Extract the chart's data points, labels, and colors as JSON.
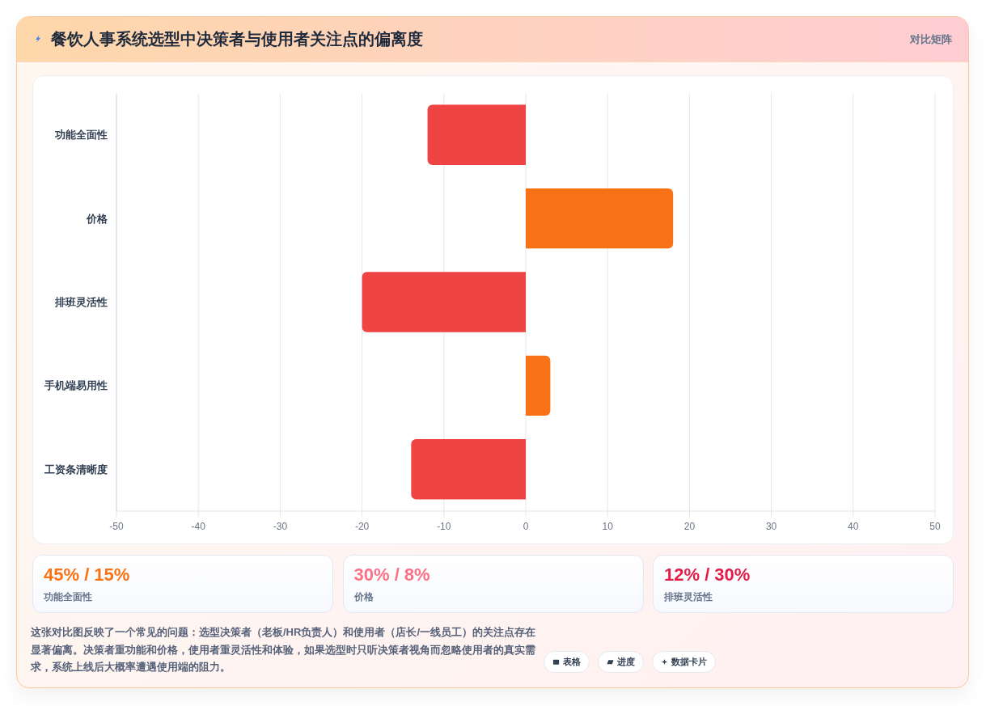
{
  "chart_data": [
    {
      "type": "bar",
      "title": "餐饮人事系统选型中决策者与使用者关注点的偏离度",
      "subtitle": "对比矩阵",
      "orientation": "horizontal",
      "categories": [
        "功能全面性",
        "价格",
        "排班灵活性",
        "手机端易用性",
        "工资条清晰度"
      ],
      "values": [
        -12,
        18,
        -20,
        3,
        -14
      ],
      "colors": [
        "#ef4444",
        "#f97316",
        "#ef4444",
        "#f97316",
        "#ef4444"
      ],
      "xlim": [
        -50,
        50
      ],
      "xticks": [
        -50,
        -40,
        -30,
        -20,
        -10,
        0,
        10,
        20,
        30,
        40,
        50
      ],
      "grid": "x",
      "annotations": [
        "这张对比图反映了一个常见的问题：选型决策者（老板/HR负责人）和使用者（店长/一线员工）的关注点存在显著偏离。决策者重功能和价格，使用者重灵活性和体验，如果选型时只听决策者视角而忽略使用者的真实需求，系统上线后大概率遭遇使用端的阻力。",
        "表格",
        "进度",
        "数据卡片"
      ]
    },
    {
      "type": "other",
      "title": "45% / 15%",
      "subtitle": "功能全面性",
      "color": "#f97316"
    },
    {
      "type": "other",
      "title": "30% / 8%",
      "subtitle": "价格",
      "color": "#fb7185"
    },
    {
      "type": "other",
      "title": "12% / 30%",
      "subtitle": "排班灵活性",
      "color": "#e11d48"
    }
  ]
}
